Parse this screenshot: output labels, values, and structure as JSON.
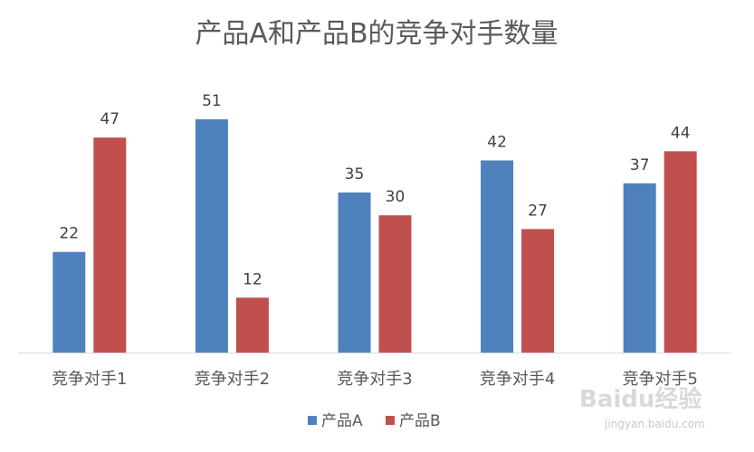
{
  "chart_data": {
    "type": "bar",
    "title": "产品A和产品B的竞争对手数量",
    "categories": [
      "竞争对手1",
      "竞争对手2",
      "竞争对手3",
      "竞争对手4",
      "竞争对手5"
    ],
    "series": [
      {
        "name": "产品A",
        "color": "#4f81bd",
        "values": [
          22,
          51,
          35,
          42,
          37
        ]
      },
      {
        "name": "产品B",
        "color": "#c0504d",
        "values": [
          47,
          12,
          30,
          27,
          44
        ]
      }
    ],
    "xlabel": "",
    "ylabel": "",
    "ylim": [
      0,
      55
    ],
    "grid": false,
    "legend": "bottom",
    "data_labels": true
  },
  "watermark": {
    "brand": "Baidu经验",
    "url": "jingyan.baidu.com"
  }
}
